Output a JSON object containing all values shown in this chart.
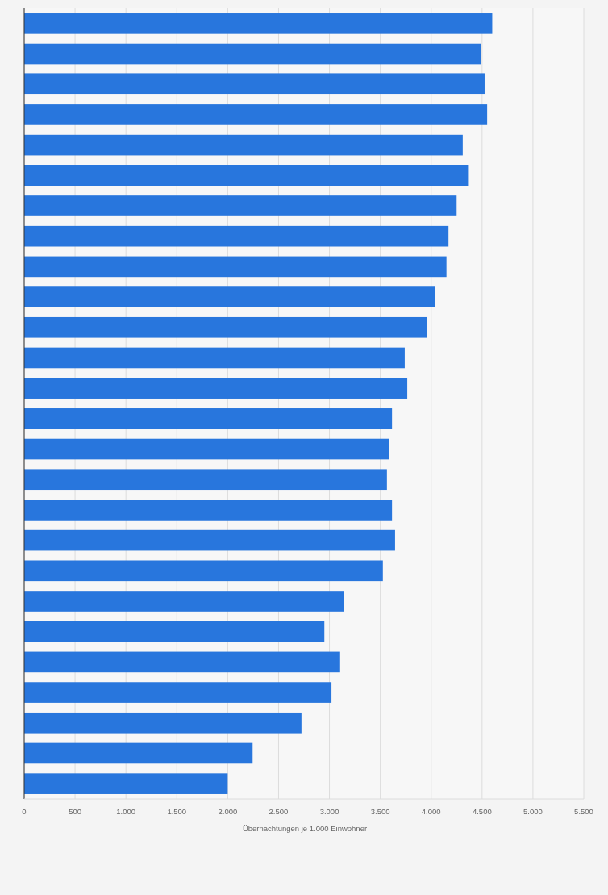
{
  "chart_data": {
    "type": "bar",
    "orientation": "horizontal",
    "xlabel": "Übernachtungen je 1.000 Einwohner",
    "categories": [
      null,
      null,
      null,
      null,
      null,
      null,
      null,
      null,
      null,
      null,
      null,
      null,
      null,
      null,
      null,
      null,
      null,
      null,
      null,
      null,
      null,
      null,
      null,
      null,
      null,
      null
    ],
    "values": [
      4600,
      4490,
      4525,
      4550,
      4310,
      4370,
      4250,
      4170,
      4150,
      4040,
      3955,
      3740,
      3765,
      3615,
      3590,
      3565,
      3615,
      3645,
      3525,
      3140,
      2950,
      3105,
      3020,
      2725,
      2245,
      2000
    ],
    "color": "#2876dd",
    "xlim": [
      0,
      5500
    ],
    "xticks": [
      0,
      500,
      {
        "value": 1000,
        "label": "1.000"
      },
      {
        "value": 1500,
        "label": "1.500"
      },
      {
        "value": 2000,
        "label": "2.000"
      },
      {
        "value": 2500,
        "label": "2.500"
      },
      {
        "value": 3000,
        "label": "3.000"
      },
      {
        "value": 3500,
        "label": "3.500"
      },
      {
        "value": 4000,
        "label": "4.000"
      },
      {
        "value": 4500,
        "label": "4.500"
      },
      {
        "value": 5000,
        "label": "5.000"
      },
      {
        "value": 5500,
        "label": "5.500"
      }
    ],
    "grid": "x"
  }
}
